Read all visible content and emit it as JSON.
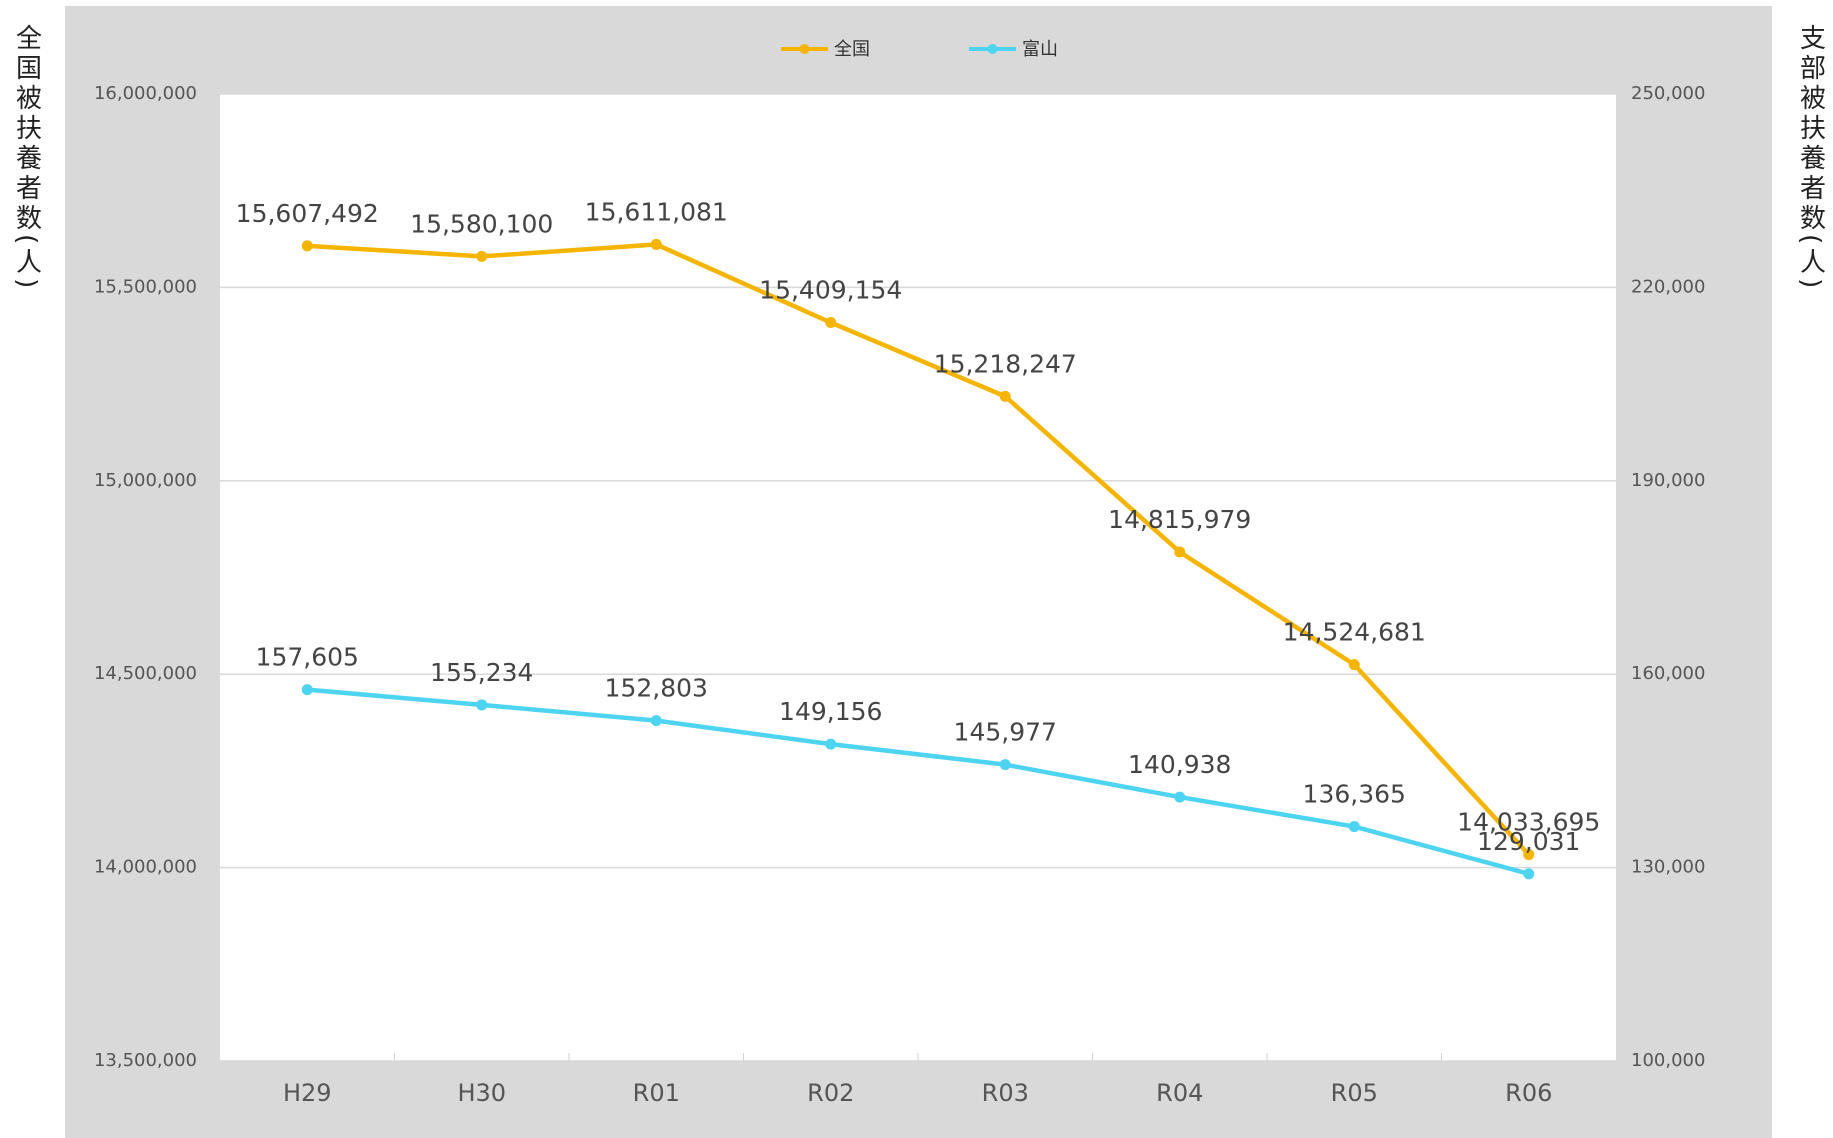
{
  "chart_data": {
    "type": "line",
    "y_label": "全国被扶養者数(人)",
    "y2_label": "支部被扶養者数(人)",
    "categories": [
      "H29",
      "H30",
      "R01",
      "R02",
      "R03",
      "R04",
      "R05",
      "R06"
    ],
    "series": [
      {
        "name": "全国",
        "color": "#f5b400",
        "values": [
          15607492,
          15580100,
          15611081,
          15409154,
          15218247,
          14815979,
          14524681,
          14033695
        ],
        "value_labels": [
          "15,607,492",
          "15,580,100",
          "15,611,081",
          "15,409,154",
          "15,218,247",
          "14,815,979",
          "14,524,681",
          "14,033,695"
        ]
      },
      {
        "name": "富山",
        "color": "#4dd4f0",
        "axis": "y2",
        "values": [
          157605,
          155234,
          152803,
          149156,
          145977,
          140938,
          136365,
          129031
        ],
        "value_labels": [
          "157,605",
          "155,234",
          "152,803",
          "149,156",
          "145,977",
          "140,938",
          "136,365",
          "129,031"
        ]
      }
    ],
    "ylim": [
      13500000,
      16000000
    ],
    "yticks": [
      {
        "value": 13500000,
        "label": "13,500,000"
      },
      {
        "value": 14000000,
        "label": "14,000,000"
      },
      {
        "value": 14500000,
        "label": "14,500,000"
      },
      {
        "value": 15000000,
        "label": "15,000,000"
      },
      {
        "value": 15500000,
        "label": "15,500,000"
      },
      {
        "value": 16000000,
        "label": "16,000,000"
      }
    ],
    "y2lim": [
      100000,
      250000
    ],
    "y2ticks": [
      {
        "value": 100000,
        "label": "100,000"
      },
      {
        "value": 130000,
        "label": "130,000"
      },
      {
        "value": 160000,
        "label": "160,000"
      },
      {
        "value": 190000,
        "label": "190,000"
      },
      {
        "value": 220000,
        "label": "220,000"
      },
      {
        "value": 250000,
        "label": "250,000"
      }
    ],
    "grid": true,
    "legend": "top"
  }
}
